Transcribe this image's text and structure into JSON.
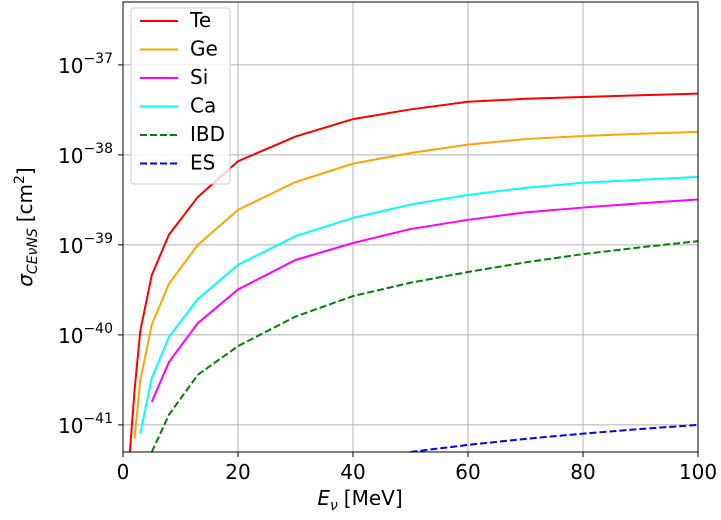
{
  "chart_data": {
    "type": "line",
    "xlabel": "E",
    "xlabel_sub": "ν",
    "xlabel_unit": "[MeV]",
    "ylabel": "σ",
    "ylabel_sub": "CEνNS",
    "ylabel_unit": "[cm",
    "ylabel_unit_sup": "2",
    "ylabel_unit_end": "]",
    "x": [
      1.2,
      2,
      3,
      5,
      8,
      13,
      20,
      30,
      40,
      50,
      60,
      70,
      80,
      90,
      100
    ],
    "series": [
      {
        "name": "Te",
        "color": "#ff0000",
        "dashed": false,
        "values": [
          5e-42,
          2.4e-41,
          1.1e-40,
          4.6e-40,
          1.3e-39,
          3.4e-39,
          8.5e-39,
          1.6e-38,
          2.5e-38,
          3.2e-38,
          3.9e-38,
          4.2e-38,
          4.4e-38,
          4.6e-38,
          4.8e-38
        ]
      },
      {
        "name": "Ge",
        "color": "#ffa500",
        "dashed": false,
        "values": [
          null,
          7e-42,
          3.1e-41,
          1.3e-40,
          3.7e-40,
          1e-39,
          2.45e-39,
          5e-39,
          8e-39,
          1.05e-38,
          1.3e-38,
          1.5e-38,
          1.62e-38,
          1.72e-38,
          1.8e-38
        ]
      },
      {
        "name": "Si",
        "color": "#ff00ff",
        "dashed": false,
        "values": [
          null,
          null,
          null,
          1.8e-41,
          5e-41,
          1.35e-40,
          3.2e-40,
          6.8e-40,
          1.05e-39,
          1.5e-39,
          1.9e-39,
          2.3e-39,
          2.6e-39,
          2.9e-39,
          3.2e-39
        ]
      },
      {
        "name": "Ca",
        "color": "#00ffff",
        "dashed": false,
        "values": [
          null,
          null,
          8e-42,
          3.3e-41,
          9.5e-41,
          2.5e-40,
          6e-40,
          1.25e-39,
          2e-39,
          2.8e-39,
          3.6e-39,
          4.3e-39,
          4.9e-39,
          5.3e-39,
          5.7e-39
        ]
      },
      {
        "name": "IBD",
        "color": "#008000",
        "dashed": true,
        "values": [
          null,
          null,
          null,
          5e-42,
          1.3e-41,
          3.6e-41,
          7.5e-41,
          1.6e-40,
          2.7e-40,
          3.8e-40,
          5e-40,
          6.4e-40,
          7.9e-40,
          9.4e-40,
          1.1e-39
        ]
      },
      {
        "name": "ES",
        "color": "#0000ff",
        "dashed": true,
        "values": [
          null,
          null,
          null,
          null,
          null,
          null,
          null,
          null,
          null,
          5e-42,
          6e-42,
          7e-42,
          8e-42,
          9e-42,
          1e-41
        ]
      }
    ],
    "xlim": [
      0,
      100
    ],
    "xticks": [
      0,
      20,
      40,
      60,
      80,
      100
    ],
    "ylim": [
      5e-42,
      5e-37
    ],
    "log_y": true,
    "yticks": [
      {
        "value": 1e-41,
        "label": "10",
        "sup": "−41"
      },
      {
        "value": 1e-40,
        "label": "10",
        "sup": "−40"
      },
      {
        "value": 1e-39,
        "label": "10",
        "sup": "−39"
      },
      {
        "value": 1e-38,
        "label": "10",
        "sup": "−38"
      },
      {
        "value": 1e-37,
        "label": "10",
        "sup": "−37"
      }
    ],
    "grid": true,
    "legend": "upper left"
  }
}
